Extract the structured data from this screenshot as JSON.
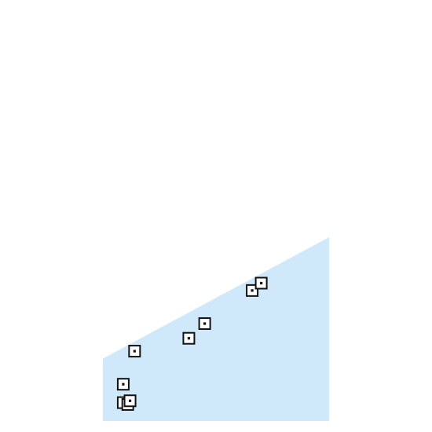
{
  "chart_data": {
    "type": "area",
    "x_range": [
      0,
      100
    ],
    "y_range": [
      0,
      100
    ],
    "grid": false,
    "legend": "none",
    "band": {
      "fill": "#cfe9fb",
      "edge": [
        {
          "x": 0,
          "y": 34
        },
        {
          "x": 100,
          "y": 100
        }
      ]
    },
    "points": [
      {
        "x": 9,
        "y": 10
      },
      {
        "x": 11,
        "y": 9
      },
      {
        "x": 12,
        "y": 11
      },
      {
        "x": 9,
        "y": 20
      },
      {
        "x": 14,
        "y": 38
      },
      {
        "x": 38,
        "y": 45
      },
      {
        "x": 45,
        "y": 53
      },
      {
        "x": 66,
        "y": 71
      },
      {
        "x": 70,
        "y": 75
      }
    ],
    "marker_color": "#111111"
  }
}
